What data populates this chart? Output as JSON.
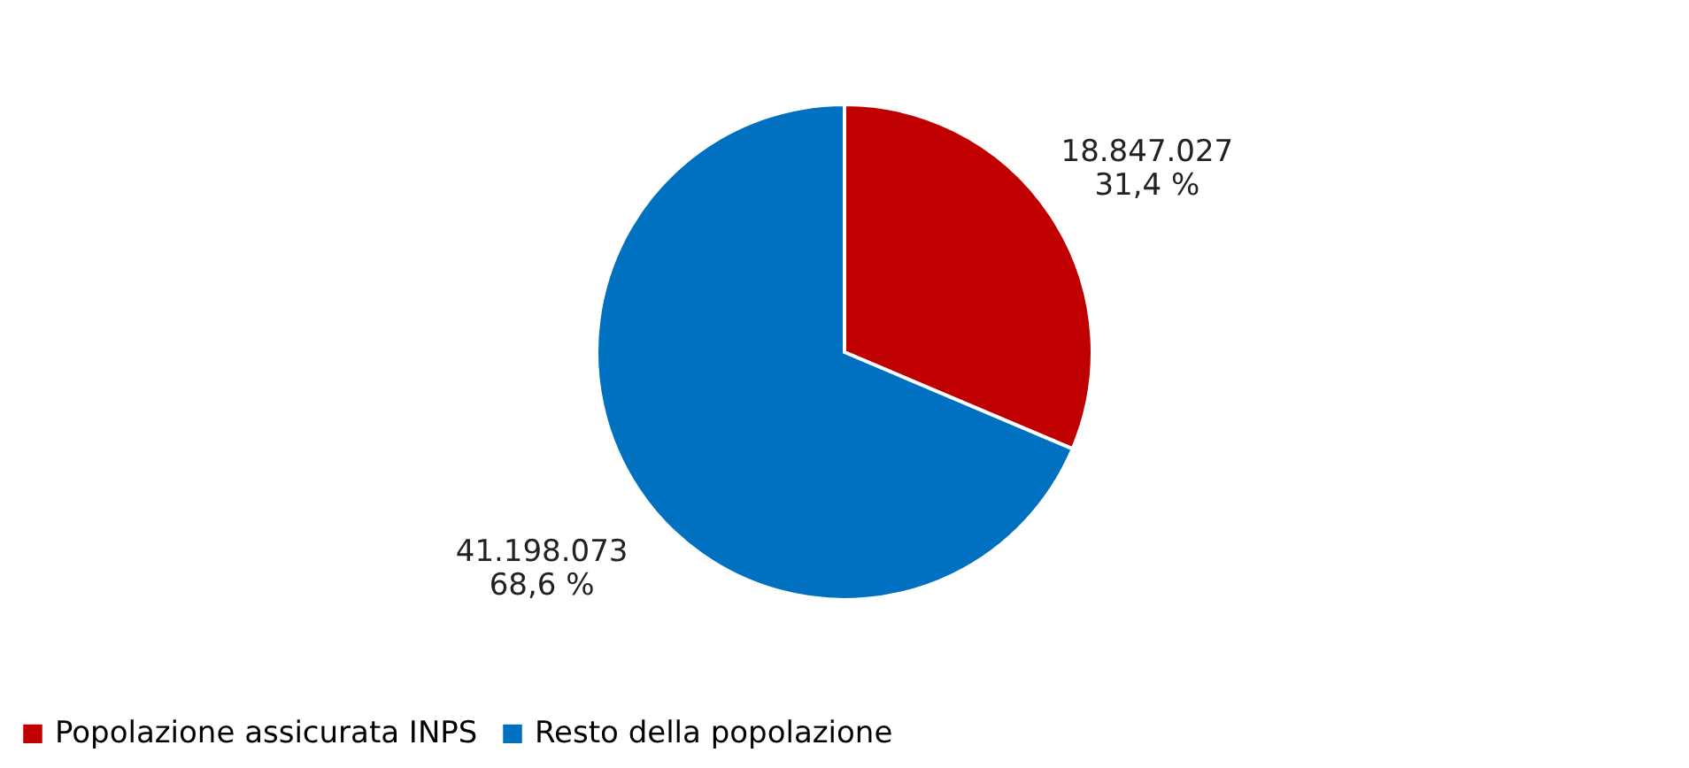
{
  "chart_data": {
    "type": "pie",
    "categories": [
      "Popolazione assicurata INPS",
      "Resto della popolazione"
    ],
    "values": [
      18847027,
      41198073
    ],
    "colors": [
      "#c00000",
      "#0070c0"
    ],
    "value_labels": [
      "18.847.027\n31,4 %",
      "41.198.073\n68,6 %"
    ],
    "legend": "bottom"
  }
}
